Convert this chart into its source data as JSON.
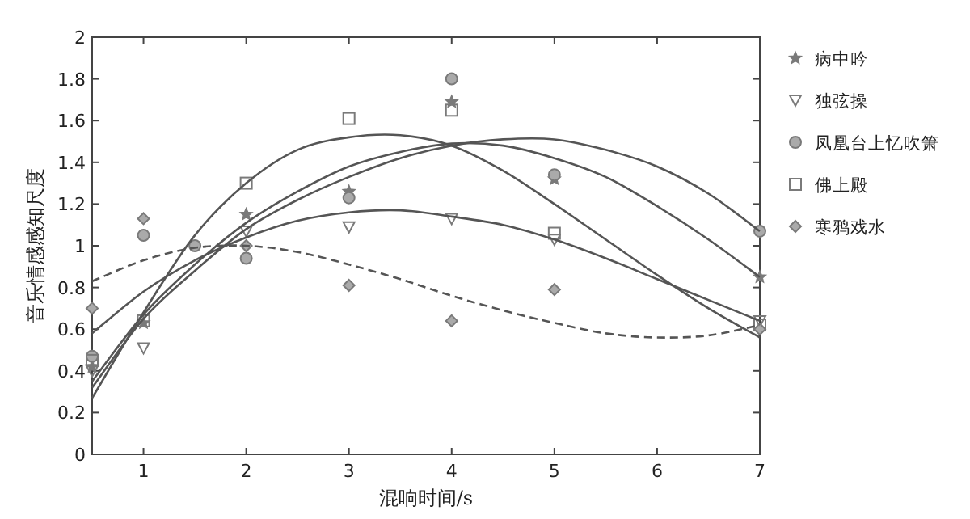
{
  "chart_data": {
    "type": "scatter",
    "xlabel": "混响时间/s",
    "ylabel": "音乐情感感知尺度",
    "xlim": [
      0.5,
      7
    ],
    "xticks": [
      1,
      2,
      3,
      4,
      5,
      6,
      7
    ],
    "ylim": [
      0,
      2
    ],
    "yticks": [
      0,
      0.2,
      0.4,
      0.6,
      0.8,
      1,
      1.2,
      1.4,
      1.6,
      1.8,
      2
    ],
    "grid": false,
    "legend": "right",
    "series": [
      {
        "name": "病中吟",
        "marker": "star",
        "color": "#7a7a7a",
        "x": [
          0.5,
          1,
          2,
          3,
          4,
          5,
          7
        ],
        "values": [
          0.42,
          0.63,
          1.15,
          1.26,
          1.69,
          1.32,
          0.85
        ]
      },
      {
        "name": "独弦操",
        "marker": "triangle",
        "color": "#7a7a7a",
        "x": [
          0.5,
          1,
          2,
          3,
          4,
          5,
          7
        ],
        "values": [
          0.4,
          0.51,
          1.07,
          1.09,
          1.13,
          1.03,
          0.64
        ]
      },
      {
        "name": "凤凰台上忆吹箫",
        "marker": "circle",
        "color": "#7a7a7a",
        "x": [
          0.5,
          1,
          1.5,
          2,
          3,
          4,
          5,
          7
        ],
        "values": [
          0.47,
          1.05,
          1.0,
          0.94,
          1.23,
          1.8,
          1.34,
          1.07
        ]
      },
      {
        "name": "佛上殿",
        "marker": "square",
        "color": "#7a7a7a",
        "x": [
          0.5,
          1,
          2,
          3,
          4,
          5,
          7
        ],
        "values": [
          0.45,
          0.64,
          1.3,
          1.61,
          1.65,
          1.06,
          0.62
        ]
      },
      {
        "name": "寒鸦戏水",
        "marker": "diamond",
        "color": "#7a7a7a",
        "x": [
          0.5,
          1,
          2,
          3,
          4,
          5,
          7
        ],
        "values": [
          0.7,
          1.13,
          1.0,
          0.81,
          0.64,
          0.79,
          0.6
        ]
      },
      {
        "type": "line",
        "line_style": "solid",
        "color": "#555555",
        "x": [
          0.5,
          1,
          1.5,
          2,
          2.5,
          3,
          3.5,
          4,
          4.5,
          5,
          5.5,
          6,
          6.5,
          7
        ],
        "values": [
          0.27,
          0.68,
          1.05,
          1.3,
          1.46,
          1.52,
          1.53,
          1.48,
          1.36,
          1.2,
          1.03,
          0.86,
          0.7,
          0.56
        ]
      },
      {
        "type": "line",
        "line_style": "solid",
        "color": "#555555",
        "x": [
          0.5,
          1,
          1.5,
          2,
          2.5,
          3,
          3.5,
          4,
          4.5,
          5,
          5.5,
          6,
          6.5,
          7
        ],
        "values": [
          0.32,
          0.65,
          0.88,
          1.08,
          1.22,
          1.33,
          1.42,
          1.48,
          1.51,
          1.51,
          1.46,
          1.38,
          1.25,
          1.07
        ]
      },
      {
        "type": "line",
        "line_style": "solid",
        "color": "#555555",
        "x": [
          0.5,
          1,
          1.5,
          2,
          2.5,
          3,
          3.5,
          4,
          4.5,
          5,
          5.5,
          6,
          6.5,
          7
        ],
        "values": [
          0.35,
          0.67,
          0.91,
          1.11,
          1.26,
          1.38,
          1.45,
          1.49,
          1.48,
          1.42,
          1.33,
          1.19,
          1.03,
          0.85
        ]
      },
      {
        "type": "line",
        "line_style": "solid",
        "color": "#555555",
        "x": [
          0.5,
          1,
          1.5,
          2,
          2.5,
          3,
          3.5,
          4,
          4.5,
          5,
          5.5,
          6,
          6.5,
          7
        ],
        "values": [
          0.58,
          0.78,
          0.93,
          1.04,
          1.12,
          1.16,
          1.17,
          1.14,
          1.1,
          1.03,
          0.94,
          0.84,
          0.74,
          0.64
        ]
      },
      {
        "type": "line",
        "line_style": "dashed",
        "color": "#555555",
        "x": [
          0.5,
          1,
          1.5,
          2,
          2.5,
          3,
          3.5,
          4,
          4.5,
          5,
          5.5,
          6,
          6.5,
          7
        ],
        "values": [
          0.83,
          0.93,
          0.99,
          1.0,
          0.97,
          0.91,
          0.84,
          0.76,
          0.69,
          0.63,
          0.58,
          0.56,
          0.57,
          0.62
        ]
      }
    ]
  }
}
